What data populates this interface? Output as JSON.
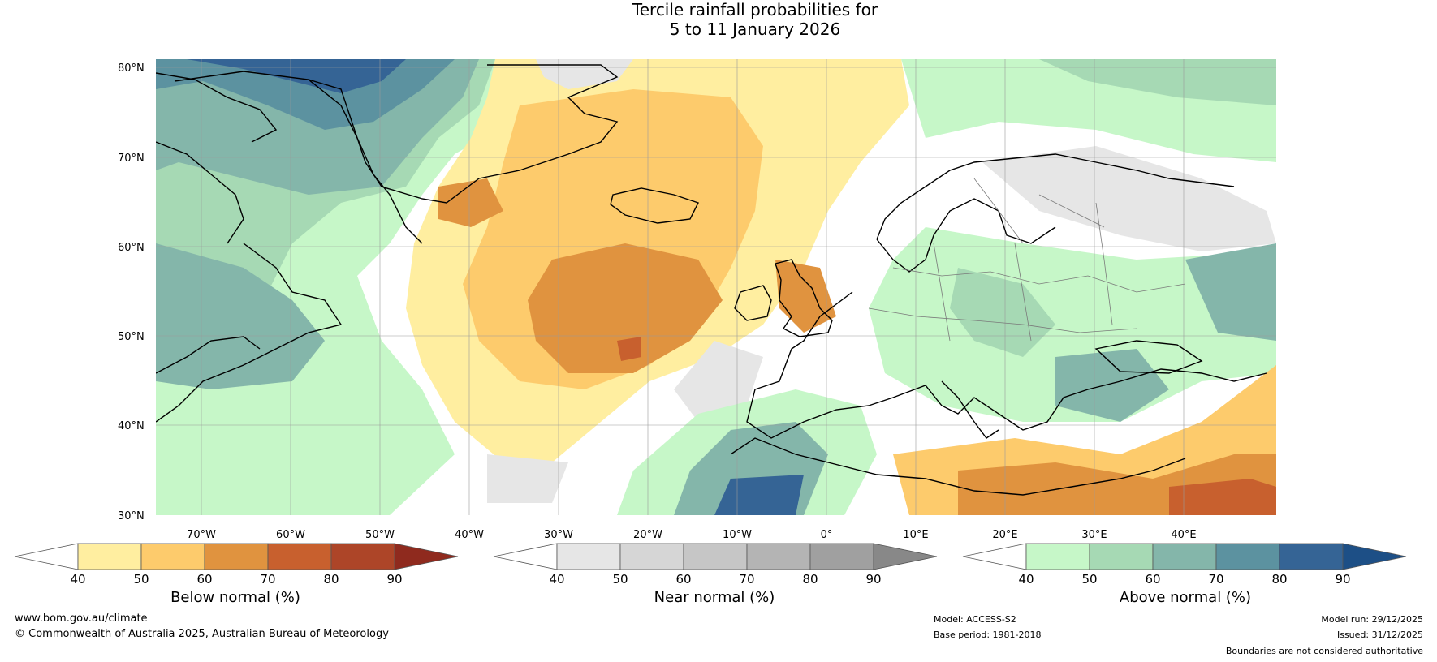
{
  "header": {
    "title_line1": "Tercile rainfall probabilities for",
    "title_line2": "5 to 11 January 2026"
  },
  "map": {
    "lat_labels": [
      "80°N",
      "70°N",
      "60°N",
      "50°N",
      "40°N",
      "30°N"
    ],
    "lon_labels": [
      "70°W",
      "60°W",
      "50°W",
      "40°W",
      "30°W",
      "20°W",
      "10°W",
      "0°",
      "10°E",
      "20°E",
      "30°E",
      "40°E"
    ]
  },
  "legends": [
    {
      "name": "below-normal",
      "label": "Below normal (%)",
      "ticks": [
        "40",
        "50",
        "60",
        "70",
        "80",
        "90"
      ],
      "colors": [
        "#ffeea0",
        "#fdcb6c",
        "#e0933f",
        "#c8602e",
        "#ad4528",
        "#8f2a1e"
      ]
    },
    {
      "name": "near-normal",
      "label": "Near normal (%)",
      "ticks": [
        "40",
        "50",
        "60",
        "70",
        "80",
        "90"
      ],
      "colors": [
        "#e6e6e6",
        "#d6d6d6",
        "#c6c6c6",
        "#b4b4b4",
        "#a0a0a0",
        "#888888"
      ]
    },
    {
      "name": "above-normal",
      "label": "Above normal (%)",
      "ticks": [
        "40",
        "50",
        "60",
        "70",
        "80",
        "90"
      ],
      "colors": [
        "#c6f7c8",
        "#a6d9b4",
        "#84b6aa",
        "#5c92a0",
        "#356495",
        "#1d4f86"
      ]
    }
  ],
  "footer": {
    "website": "www.bom.gov.au/climate",
    "copyright": "© Commonwealth of Australia 2025, Australian Bureau of Meteorology",
    "model": "Model: ACCESS-S2",
    "base_period": "Base period: 1981-2018",
    "model_run": "Model run: 29/12/2025",
    "issued": "Issued: 31/12/2025",
    "disclaimer": "Boundaries are not considered authoritative"
  }
}
